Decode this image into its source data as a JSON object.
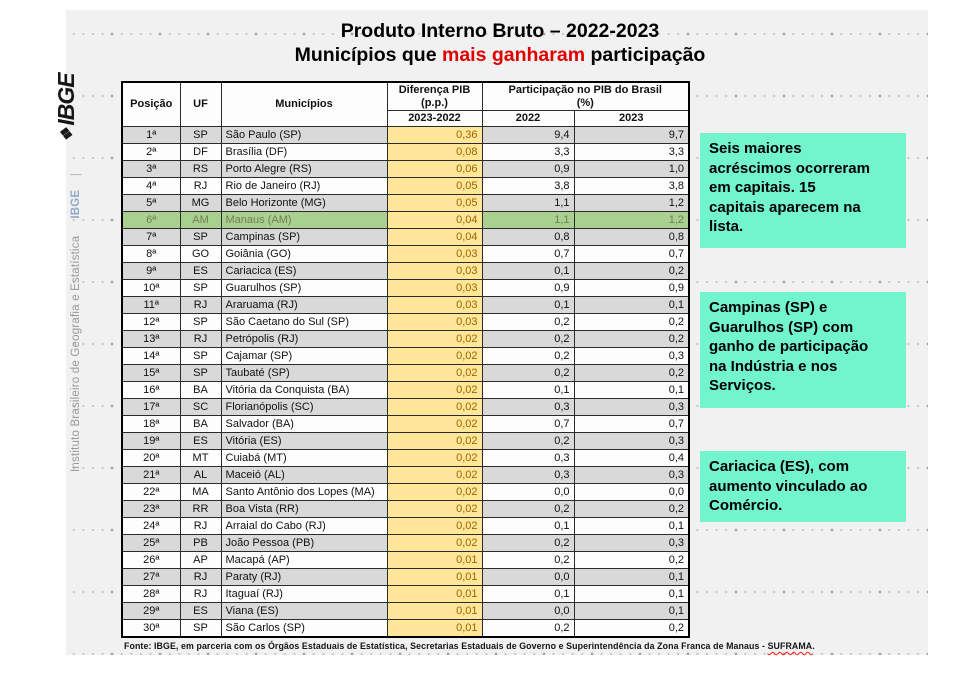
{
  "colors": {
    "accent-red": "#e10000",
    "note-bg": "#72f4cc",
    "hl-green": "#a9d08e",
    "hl-green-text": "#6f7f58",
    "cell-yellow": "#ffe699",
    "cell-yellow-text": "#9c6500",
    "row-gray": "#d9d9d9",
    "slide-bg": "#f1f1f1"
  },
  "branding": {
    "logo_glyph": "❖",
    "logo_text": "IBGE",
    "side_text": "Instituto Brasileiro de Geografia e Estatística",
    "side_abbr": "IBGE",
    "side_sep": "|"
  },
  "title": {
    "line1": "Produto Interno Bruto – 2022-2023",
    "line2_prefix": "Municípios que ",
    "line2_highlight": "mais ganharam",
    "line2_suffix": " participação"
  },
  "table": {
    "headers": {
      "posicao": "Posição",
      "uf": "UF",
      "municipios": "Municípios",
      "diferenca_l1": "Diferença PIB",
      "diferenca_l2": "(p.p.)",
      "participacao_l1": "Participação no PIB do Brasil",
      "participacao_l2": "(%)",
      "sub_diferenca": "2023-2022",
      "sub_2022": "2022",
      "sub_2023": "2023"
    },
    "rows": [
      {
        "pos": "1ª",
        "uf": "SP",
        "municipio": "São Paulo (SP)",
        "dif": "0,36",
        "p2022": "9,4",
        "p2023": "9,7",
        "highlight": false
      },
      {
        "pos": "2ª",
        "uf": "DF",
        "municipio": "Brasília (DF)",
        "dif": "0,08",
        "p2022": "3,3",
        "p2023": "3,3",
        "highlight": false
      },
      {
        "pos": "3ª",
        "uf": "RS",
        "municipio": "Porto Alegre (RS)",
        "dif": "0,06",
        "p2022": "0,9",
        "p2023": "1,0",
        "highlight": false
      },
      {
        "pos": "4ª",
        "uf": "RJ",
        "municipio": "Rio de Janeiro (RJ)",
        "dif": "0,05",
        "p2022": "3,8",
        "p2023": "3,8",
        "highlight": false
      },
      {
        "pos": "5ª",
        "uf": "MG",
        "municipio": "Belo Horizonte (MG)",
        "dif": "0,05",
        "p2022": "1,1",
        "p2023": "1,2",
        "highlight": false
      },
      {
        "pos": "6ª",
        "uf": "AM",
        "municipio": "Manaus (AM)",
        "dif": "0,04",
        "p2022": "1,1",
        "p2023": "1,2",
        "highlight": true
      },
      {
        "pos": "7ª",
        "uf": "SP",
        "municipio": "Campinas (SP)",
        "dif": "0,04",
        "p2022": "0,8",
        "p2023": "0,8",
        "highlight": false
      },
      {
        "pos": "8ª",
        "uf": "GO",
        "municipio": "Goiânia (GO)",
        "dif": "0,03",
        "p2022": "0,7",
        "p2023": "0,7",
        "highlight": false
      },
      {
        "pos": "9ª",
        "uf": "ES",
        "municipio": "Cariacica (ES)",
        "dif": "0,03",
        "p2022": "0,1",
        "p2023": "0,2",
        "highlight": false
      },
      {
        "pos": "10ª",
        "uf": "SP",
        "municipio": "Guarulhos (SP)",
        "dif": "0,03",
        "p2022": "0,9",
        "p2023": "0,9",
        "highlight": false
      },
      {
        "pos": "11ª",
        "uf": "RJ",
        "municipio": "Araruama (RJ)",
        "dif": "0,03",
        "p2022": "0,1",
        "p2023": "0,1",
        "highlight": false
      },
      {
        "pos": "12ª",
        "uf": "SP",
        "municipio": "São Caetano do Sul (SP)",
        "dif": "0,03",
        "p2022": "0,2",
        "p2023": "0,2",
        "highlight": false
      },
      {
        "pos": "13ª",
        "uf": "RJ",
        "municipio": "Petrópolis (RJ)",
        "dif": "0,02",
        "p2022": "0,2",
        "p2023": "0,2",
        "highlight": false
      },
      {
        "pos": "14ª",
        "uf": "SP",
        "municipio": "Cajamar (SP)",
        "dif": "0,02",
        "p2022": "0,2",
        "p2023": "0,3",
        "highlight": false
      },
      {
        "pos": "15ª",
        "uf": "SP",
        "municipio": "Taubaté (SP)",
        "dif": "0,02",
        "p2022": "0,2",
        "p2023": "0,2",
        "highlight": false
      },
      {
        "pos": "16ª",
        "uf": "BA",
        "municipio": "Vitória da Conquista (BA)",
        "dif": "0,02",
        "p2022": "0,1",
        "p2023": "0,1",
        "highlight": false
      },
      {
        "pos": "17ª",
        "uf": "SC",
        "municipio": "Florianópolis (SC)",
        "dif": "0,02",
        "p2022": "0,3",
        "p2023": "0,3",
        "highlight": false
      },
      {
        "pos": "18ª",
        "uf": "BA",
        "municipio": "Salvador (BA)",
        "dif": "0,02",
        "p2022": "0,7",
        "p2023": "0,7",
        "highlight": false
      },
      {
        "pos": "19ª",
        "uf": "ES",
        "municipio": "Vitória (ES)",
        "dif": "0,02",
        "p2022": "0,2",
        "p2023": "0,3",
        "highlight": false
      },
      {
        "pos": "20ª",
        "uf": "MT",
        "municipio": "Cuiabá (MT)",
        "dif": "0,02",
        "p2022": "0,3",
        "p2023": "0,4",
        "highlight": false
      },
      {
        "pos": "21ª",
        "uf": "AL",
        "municipio": "Maceió (AL)",
        "dif": "0,02",
        "p2022": "0,3",
        "p2023": "0,3",
        "highlight": false
      },
      {
        "pos": "22ª",
        "uf": "MA",
        "municipio": "Santo Antônio dos Lopes (MA)",
        "dif": "0,02",
        "p2022": "0,0",
        "p2023": "0,0",
        "highlight": false
      },
      {
        "pos": "23ª",
        "uf": "RR",
        "municipio": "Boa Vista (RR)",
        "dif": "0,02",
        "p2022": "0,2",
        "p2023": "0,2",
        "highlight": false
      },
      {
        "pos": "24ª",
        "uf": "RJ",
        "municipio": "Arraial do Cabo (RJ)",
        "dif": "0,02",
        "p2022": "0,1",
        "p2023": "0,1",
        "highlight": false
      },
      {
        "pos": "25ª",
        "uf": "PB",
        "municipio": "João Pessoa (PB)",
        "dif": "0,02",
        "p2022": "0,2",
        "p2023": "0,3",
        "highlight": false
      },
      {
        "pos": "26ª",
        "uf": "AP",
        "municipio": "Macapá (AP)",
        "dif": "0,01",
        "p2022": "0,2",
        "p2023": "0,2",
        "highlight": false
      },
      {
        "pos": "27ª",
        "uf": "RJ",
        "municipio": "Paraty (RJ)",
        "dif": "0,01",
        "p2022": "0,0",
        "p2023": "0,1",
        "highlight": false
      },
      {
        "pos": "28ª",
        "uf": "RJ",
        "municipio": "Itaguaí (RJ)",
        "dif": "0,01",
        "p2022": "0,1",
        "p2023": "0,1",
        "highlight": false
      },
      {
        "pos": "29ª",
        "uf": "ES",
        "municipio": "Viana (ES)",
        "dif": "0,01",
        "p2022": "0,0",
        "p2023": "0,1",
        "highlight": false
      },
      {
        "pos": "30ª",
        "uf": "SP",
        "municipio": "São Carlos (SP)",
        "dif": "0,01",
        "p2022": "0,2",
        "p2023": "0,2",
        "highlight": false
      }
    ]
  },
  "notes": [
    {
      "text": "Seis maiores\nacréscimos ocorreram\nem capitais. 15\ncapitais aparecem na\nlista."
    },
    {
      "text": "Campinas (SP) e\nGuarulhos (SP) com\nganho de participação\nna Indústria e nos\nServiços."
    },
    {
      "text": "Cariacica (ES),  com\naumento vinculado ao\nComércio."
    }
  ],
  "fonte": {
    "prefix": "Fonte: IBGE, em parceria com os Órgãos Estaduais de Estatística, Secretarias Estaduais de Governo e Superintendência da Zona Franca de Manaus - ",
    "link": "SUFRAMA",
    "suffix": "."
  }
}
